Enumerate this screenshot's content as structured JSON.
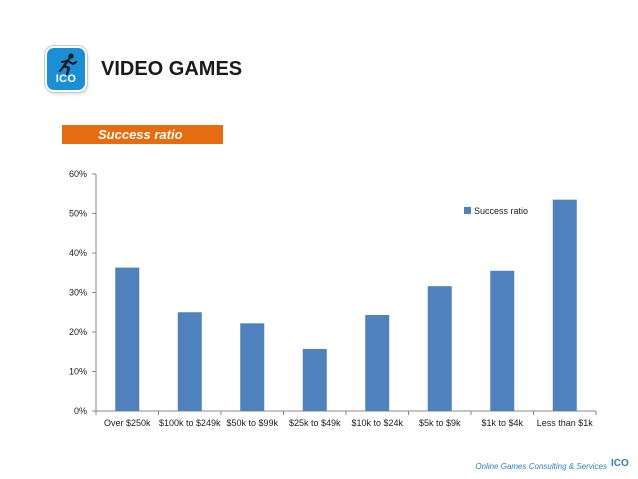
{
  "header": {
    "logo_text": "ICO",
    "title": "VIDEO GAMES"
  },
  "section_label": "Success ratio",
  "chart_data": {
    "type": "bar",
    "categories": [
      "Over $250k",
      "$100k to $249k",
      "$50k to $99k",
      "$25k to $49k",
      "$10k to $24k",
      "$5k to $9k",
      "$1k to $4k",
      "Less than $1k"
    ],
    "series": [
      {
        "name": "Success ratio",
        "values": [
          36.3,
          25.0,
          22.2,
          15.7,
          24.3,
          31.6,
          35.5,
          53.5
        ]
      }
    ],
    "yticks": [
      "0%",
      "10%",
      "20%",
      "30%",
      "40%",
      "50%",
      "60%"
    ],
    "ylim": [
      0,
      60
    ],
    "grid": false,
    "legend_position": "top-right",
    "bar_color": "#4f81bd"
  },
  "footer": {
    "text": "Online Games Consulting & Services",
    "logo_text": "ICO"
  }
}
